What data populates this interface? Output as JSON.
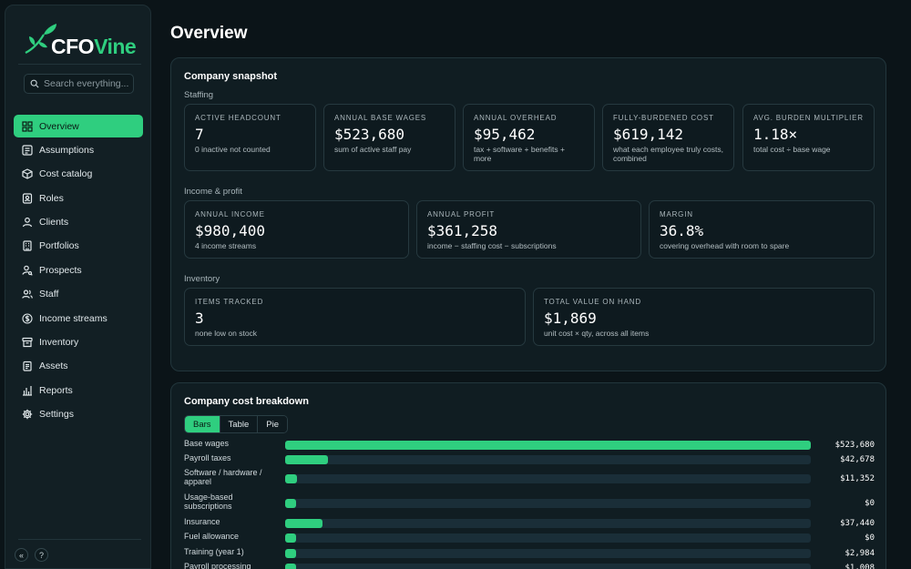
{
  "brand": {
    "cfo": "CFO",
    "vine": "Vine",
    "accent": "#2fce7f"
  },
  "search": {
    "placeholder": "Search everything..."
  },
  "nav": [
    {
      "label": "Overview",
      "icon": "grid-icon",
      "active": true
    },
    {
      "label": "Assumptions",
      "icon": "sliders-icon"
    },
    {
      "label": "Cost catalog",
      "icon": "box-icon"
    },
    {
      "label": "Roles",
      "icon": "id-badge-icon"
    },
    {
      "label": "Clients",
      "icon": "person-icon"
    },
    {
      "label": "Portfolios",
      "icon": "building-icon"
    },
    {
      "label": "Prospects",
      "icon": "user-search-icon"
    },
    {
      "label": "Staff",
      "icon": "users-icon"
    },
    {
      "label": "Income streams",
      "icon": "dollar-circle-icon"
    },
    {
      "label": "Inventory",
      "icon": "archive-icon"
    },
    {
      "label": "Assets",
      "icon": "clipboard-icon"
    },
    {
      "label": "Reports",
      "icon": "bar-chart-icon"
    },
    {
      "label": "Settings",
      "icon": "gear-icon"
    }
  ],
  "sidebar_footer": {
    "collapse": "«",
    "help": "?"
  },
  "page": {
    "title": "Overview"
  },
  "snapshot": {
    "title": "Company snapshot",
    "staffing": {
      "label": "Staffing",
      "stats": [
        {
          "label": "ACTIVE HEADCOUNT",
          "value": "7",
          "sub": "0 inactive not counted"
        },
        {
          "label": "ANNUAL BASE WAGES",
          "value": "$523,680",
          "sub": "sum of active staff pay"
        },
        {
          "label": "ANNUAL OVERHEAD",
          "value": "$95,462",
          "sub": "tax + software + benefits + more"
        },
        {
          "label": "FULLY-BURDENED COST",
          "value": "$619,142",
          "sub": "what each employee truly costs, combined"
        },
        {
          "label": "AVG. BURDEN MULTIPLIER",
          "value": "1.18×",
          "sub": "total cost ÷ base wage"
        }
      ]
    },
    "income": {
      "label": "Income & profit",
      "stats": [
        {
          "label": "ANNUAL INCOME",
          "value": "$980,400",
          "sub": "4 income streams"
        },
        {
          "label": "ANNUAL PROFIT",
          "value": "$361,258",
          "sub": "income − staffing cost − subscriptions"
        },
        {
          "label": "MARGIN",
          "value": "36.8%",
          "sub": "covering overhead with room to spare"
        }
      ]
    },
    "inventory": {
      "label": "Inventory",
      "stats": [
        {
          "label": "ITEMS TRACKED",
          "value": "3",
          "sub": "none low on stock"
        },
        {
          "label": "TOTAL VALUE ON HAND",
          "value": "$1,869",
          "sub": "unit cost × qty, across all items"
        }
      ]
    }
  },
  "breakdown": {
    "title": "Company cost breakdown",
    "tabs": [
      {
        "label": "Bars",
        "active": true
      },
      {
        "label": "Table"
      },
      {
        "label": "Pie"
      }
    ],
    "rows": [
      {
        "label": "Base wages",
        "value": 523680,
        "display": "$523,680"
      },
      {
        "label": "Payroll taxes",
        "value": 42678,
        "display": "$42,678"
      },
      {
        "label": "Software / hardware / apparel",
        "value": 11352,
        "display": "$11,352"
      },
      {
        "label": "Usage-based subscriptions",
        "value": 0,
        "display": "$0"
      },
      {
        "label": "Insurance",
        "value": 37440,
        "display": "$37,440"
      },
      {
        "label": "Fuel allowance",
        "value": 0,
        "display": "$0"
      },
      {
        "label": "Training (year 1)",
        "value": 2984,
        "display": "$2,984"
      },
      {
        "label": "Payroll processing",
        "value": 1008,
        "display": "$1,008"
      }
    ]
  }
}
